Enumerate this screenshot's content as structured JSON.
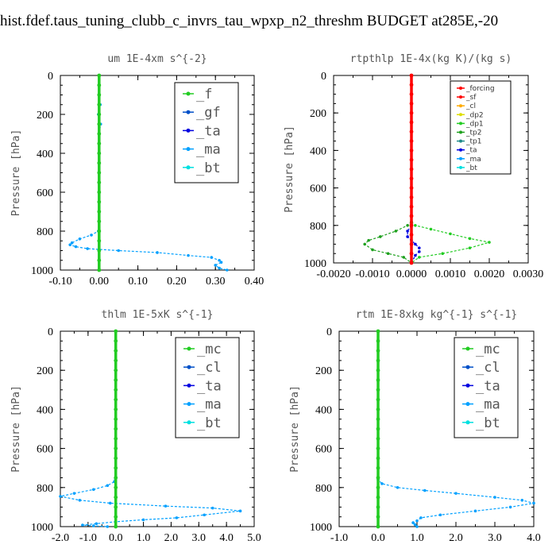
{
  "page_title": "hist.fdef.taus_tuning_clubb_c_invrs_tau_wpxp_n2_threshm  BUDGET at285E,-20",
  "colors": {
    "ma": "#00a0ff",
    "gf": "#0050c8",
    "ta": "#0000e0",
    "bt": "#00e0e0",
    "green": "#22cc22",
    "red": "#ff0000",
    "orange": "#ffaa00",
    "yellow": "#dddd00",
    "tp2": "#1ea01e",
    "tp1": "#1f8a8a"
  },
  "chart_data": [
    {
      "type": "line",
      "title": "um   1E-4xm s^{-2}",
      "ylabel": "Pressure [hPa]",
      "xlim": [
        -0.1,
        0.4
      ],
      "ylim": [
        1000,
        0
      ],
      "xticks": [
        "-0.10",
        "0.00",
        "0.10",
        "0.20",
        "0.30",
        "0.40"
      ],
      "yticks": [
        "0",
        "200",
        "400",
        "600",
        "800",
        "1000"
      ],
      "legend_style": "big",
      "legend_entries": [
        "_f",
        "_gf",
        "_ta",
        "_ma",
        "_bt"
      ],
      "legend_colors": [
        "#22cc22",
        "#0050c8",
        "#0000e0",
        "#00a0ff",
        "#00e0e0"
      ],
      "series": [
        {
          "name": "_ma",
          "color": "#00a0ff",
          "x": [
            0,
            0,
            0.003,
            -0.002,
            0.004,
            0,
            0,
            0,
            -0.002,
            -0.02,
            -0.05,
            -0.07,
            -0.075,
            -0.06,
            -0.03,
            0.05,
            0.15,
            0.23,
            0.29,
            0.31,
            0.315,
            0.3,
            0.31,
            0.33
          ],
          "y": [
            0,
            100,
            150,
            200,
            250,
            300,
            600,
            750,
            800,
            820,
            840,
            860,
            870,
            880,
            890,
            900,
            910,
            925,
            935,
            950,
            960,
            975,
            990,
            1000
          ]
        },
        {
          "name": "_f",
          "color": "#22cc22",
          "x": [
            0,
            0,
            0,
            0,
            0,
            0,
            0,
            0,
            0,
            0,
            0,
            0,
            0,
            0,
            0,
            0,
            0,
            0,
            0,
            0,
            0
          ],
          "y": [
            0,
            50,
            100,
            150,
            200,
            250,
            300,
            350,
            400,
            450,
            500,
            550,
            600,
            650,
            700,
            750,
            800,
            850,
            900,
            950,
            1000
          ]
        }
      ]
    },
    {
      "type": "line",
      "title": "rtpthlp   1E-4x(kg K)/(kg s)",
      "ylabel": "Pressure [hPa]",
      "xlim": [
        -0.002,
        0.003
      ],
      "ylim": [
        1000,
        0
      ],
      "xticks": [
        "-0.0020",
        "-0.0010",
        "0.0000",
        "0.0010",
        "0.0020",
        "0.0030"
      ],
      "yticks": [
        "0",
        "200",
        "400",
        "600",
        "800",
        "1000"
      ],
      "legend_style": "small",
      "legend_entries": [
        "_forcing",
        "_sf",
        "_cl",
        "_dp2",
        "_dp1",
        "_tp2",
        "_tp1",
        "_ta",
        "_ma",
        "_bt"
      ],
      "legend_colors": [
        "#ff0000",
        "#ff0000",
        "#ffaa00",
        "#dddd00",
        "#22cc22",
        "#1ea01e",
        "#1f8a8a",
        "#0000e0",
        "#00a0ff",
        "#00e0e0"
      ],
      "series": [
        {
          "name": "_dp1",
          "color": "#22cc22",
          "x": [
            0,
            0.0001,
            0.0005,
            0.001,
            0.0015,
            0.002,
            0.0015,
            0.0008,
            0.0002,
            0
          ],
          "y": [
            780,
            800,
            820,
            845,
            870,
            890,
            920,
            950,
            970,
            1000
          ]
        },
        {
          "name": "_tp2",
          "color": "#1ea01e",
          "x": [
            0,
            -0.0001,
            -0.0004,
            -0.0008,
            -0.0011,
            -0.0012,
            -0.001,
            -0.0006,
            -0.0002,
            0
          ],
          "y": [
            780,
            800,
            830,
            860,
            880,
            900,
            930,
            950,
            970,
            1000
          ]
        },
        {
          "name": "_ta",
          "color": "#0000e0",
          "x": [
            0,
            -0.0001,
            -0.0001,
            0,
            0.0001,
            0.0002,
            0.0002,
            0.0001,
            0
          ],
          "y": [
            800,
            830,
            860,
            880,
            900,
            920,
            940,
            960,
            1000
          ]
        },
        {
          "name": "_forcing",
          "color": "#ff0000",
          "x": [
            0,
            0,
            0,
            0,
            0,
            0,
            0,
            0,
            0,
            0,
            0,
            0,
            0,
            0,
            0,
            0,
            0,
            0,
            0,
            0,
            0
          ],
          "y": [
            0,
            50,
            100,
            150,
            200,
            250,
            300,
            350,
            400,
            450,
            500,
            550,
            600,
            650,
            700,
            750,
            800,
            850,
            900,
            950,
            1000
          ]
        }
      ]
    },
    {
      "type": "line",
      "title": "thlm   1E-5xK s^{-1}",
      "ylabel": "Pressure [hPa]",
      "xlim": [
        -2.0,
        5.0
      ],
      "ylim": [
        1000,
        0
      ],
      "xticks": [
        "-2.0",
        "-1.0",
        "0.0",
        "1.0",
        "2.0",
        "3.0",
        "4.0",
        "5.0"
      ],
      "yticks": [
        "0",
        "200",
        "400",
        "600",
        "800",
        "1000"
      ],
      "legend_style": "big",
      "legend_entries": [
        "_mc",
        "_cl",
        "_ta",
        "_ma",
        "_bt"
      ],
      "legend_colors": [
        "#22cc22",
        "#0050c8",
        "#0000e0",
        "#00a0ff",
        "#00e0e0"
      ],
      "series": [
        {
          "name": "_ma",
          "color": "#00a0ff",
          "x": [
            0,
            0,
            -0.05,
            -0.3,
            -0.8,
            -1.5,
            -2.0,
            -1.3,
            -0.2,
            1.8,
            3.5,
            4.5,
            3.2,
            2.2,
            1.0,
            0.0,
            -0.7,
            -1.2,
            -0.8,
            -0.3
          ],
          "y": [
            0,
            700,
            770,
            790,
            810,
            830,
            845,
            865,
            880,
            895,
            905,
            920,
            940,
            955,
            965,
            975,
            985,
            992,
            996,
            1000
          ]
        },
        {
          "name": "_mc",
          "color": "#22cc22",
          "x": [
            0,
            0,
            0,
            0,
            0,
            0,
            0,
            0,
            0,
            0,
            0,
            0,
            0,
            0,
            0,
            0,
            0,
            0,
            0,
            0,
            0
          ],
          "y": [
            0,
            50,
            100,
            150,
            200,
            250,
            300,
            350,
            400,
            450,
            500,
            550,
            600,
            650,
            700,
            750,
            800,
            850,
            900,
            950,
            1000
          ]
        }
      ]
    },
    {
      "type": "line",
      "title": "rtm   1E-8xkg kg^{-1} s^{-1}",
      "ylabel": "Pressure [hPa]",
      "xlim": [
        -1.0,
        4.0
      ],
      "ylim": [
        1000,
        0
      ],
      "xticks": [
        "-1.0",
        "0.0",
        "1.0",
        "2.0",
        "3.0",
        "4.0"
      ],
      "yticks": [
        "0",
        "200",
        "400",
        "600",
        "800",
        "1000"
      ],
      "legend_style": "big",
      "legend_entries": [
        "_mc",
        "_cl",
        "_ta",
        "_ma",
        "_bt"
      ],
      "legend_colors": [
        "#22cc22",
        "#0050c8",
        "#0000e0",
        "#00a0ff",
        "#00e0e0"
      ],
      "series": [
        {
          "name": "_ma",
          "color": "#00a0ff",
          "x": [
            0,
            0,
            0.1,
            0.5,
            1.2,
            2.0,
            3.0,
            3.7,
            4.0,
            3.4,
            2.5,
            1.6,
            1.1,
            1.0,
            0.9,
            0.95,
            1.0
          ],
          "y": [
            0,
            760,
            780,
            800,
            815,
            830,
            850,
            865,
            880,
            900,
            920,
            940,
            955,
            970,
            980,
            990,
            1000
          ]
        },
        {
          "name": "_mc",
          "color": "#22cc22",
          "x": [
            0,
            0,
            0,
            0,
            0,
            0,
            0,
            0,
            0,
            0,
            0,
            0,
            0,
            0,
            0,
            0,
            0,
            0,
            0,
            0,
            0
          ],
          "y": [
            0,
            50,
            100,
            150,
            200,
            250,
            300,
            350,
            400,
            450,
            500,
            550,
            600,
            650,
            700,
            750,
            800,
            850,
            900,
            950,
            1000
          ]
        }
      ]
    }
  ]
}
